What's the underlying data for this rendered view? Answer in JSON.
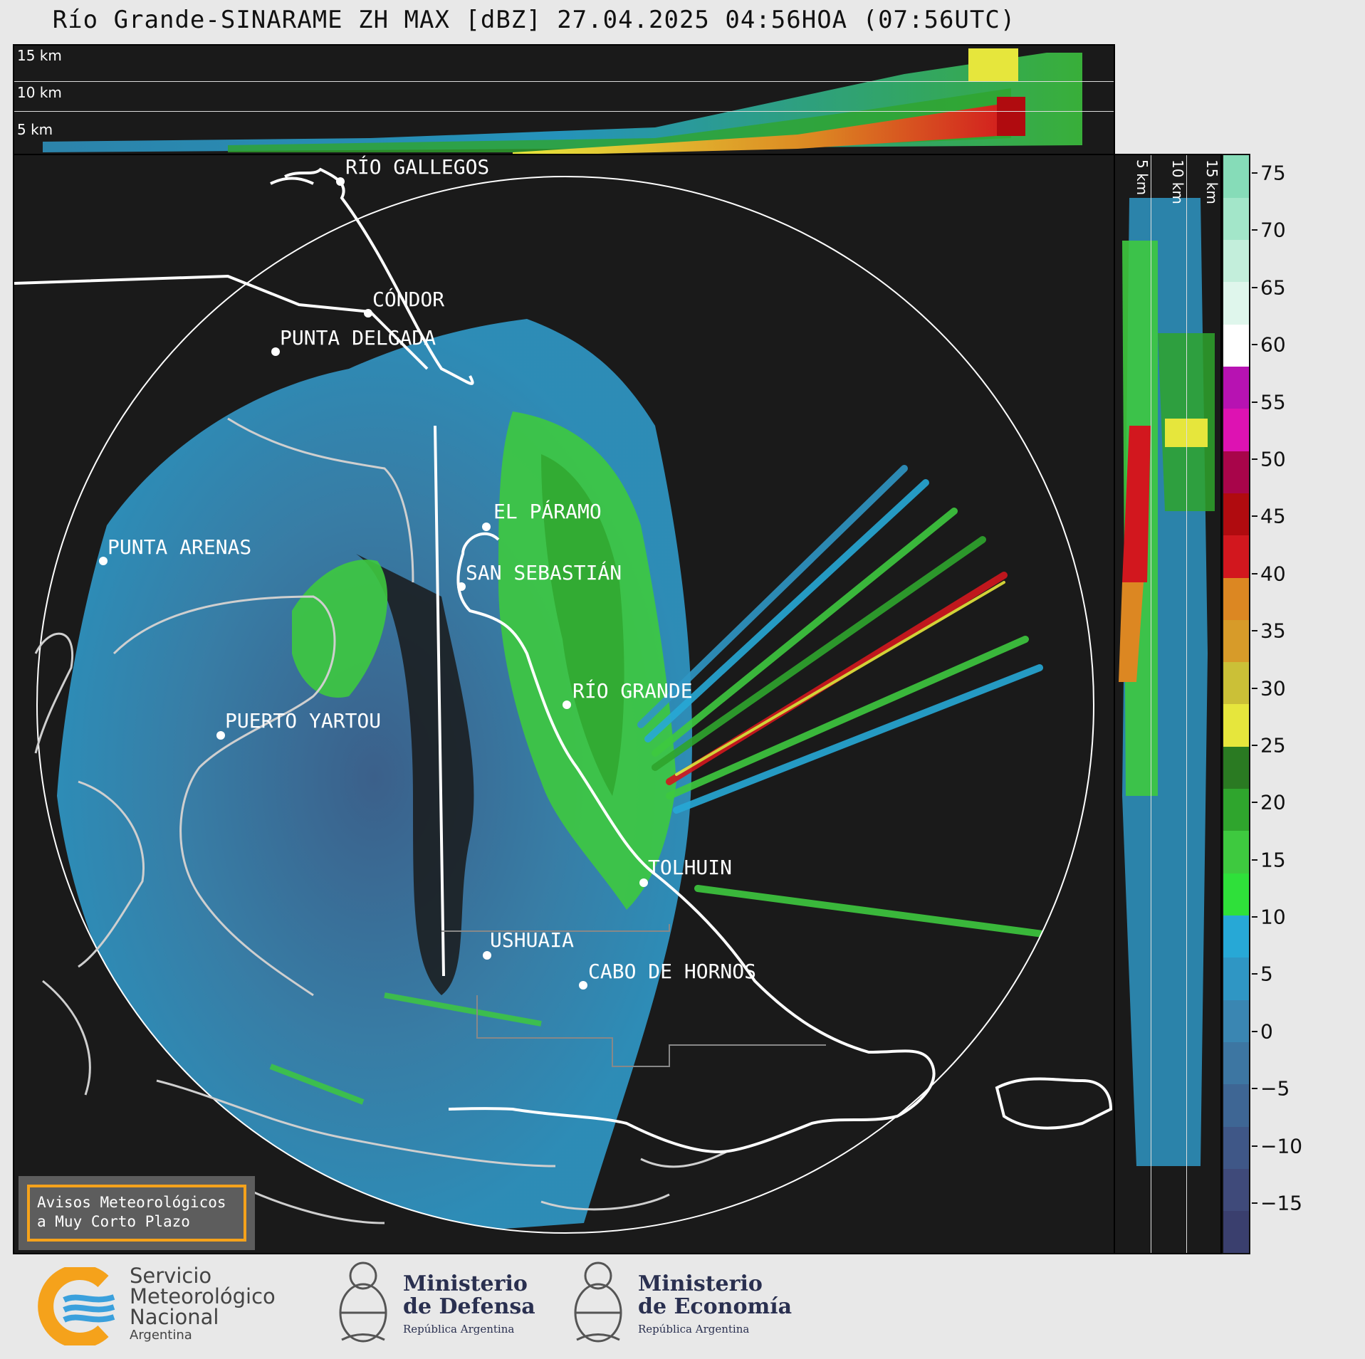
{
  "title": "Río Grande-SINARAME ZH MAX [dBZ] 27.04.2025 04:56HOA (07:56UTC)",
  "top_panel": {
    "height_labels": [
      "15 km",
      "10 km",
      "5 km"
    ]
  },
  "side_panel": {
    "height_labels": [
      "5 km",
      "10 km",
      "15 km"
    ]
  },
  "cities": [
    {
      "name": "RÍO GALLEGOS"
    },
    {
      "name": "CÓNDOR"
    },
    {
      "name": "PUNTA DELGADA"
    },
    {
      "name": "PUNTA ARENAS"
    },
    {
      "name": "EL PÁRAMO"
    },
    {
      "name": "SAN SEBASTIÁN"
    },
    {
      "name": "RÍO GRANDE"
    },
    {
      "name": "PUERTO YARTOU"
    },
    {
      "name": "TOLHUIN"
    },
    {
      "name": "USHUAIA"
    },
    {
      "name": "CABO DE HORNOS"
    }
  ],
  "colorbar": {
    "unit": "dBZ",
    "ticks": [
      "75",
      "70",
      "65",
      "60",
      "55",
      "50",
      "45",
      "40",
      "35",
      "30",
      "25",
      "20",
      "15",
      "10",
      "5",
      "0",
      "−5",
      "−10",
      "−15"
    ],
    "colors": [
      "#3a3f6e",
      "#3f4a7a",
      "#3f5787",
      "#3e6694",
      "#3d76a2",
      "#3a86b2",
      "#2f96c4",
      "#27a8d6",
      "#2fe03a",
      "#3ec93f",
      "#2fa52d",
      "#2a7a22",
      "#e6e63c",
      "#cbc037",
      "#d79b29",
      "#dc8722",
      "#d2171e",
      "#b00b0f",
      "#a8054a",
      "#dd12b2",
      "#b712b2",
      "#ffffff",
      "#dff6ec",
      "#c3eedb",
      "#a3e6c9",
      "#86dcb8"
    ]
  },
  "alert_box": {
    "line1": "Avisos Meteorológicos",
    "line2": "a Muy Corto Plazo"
  },
  "logos": {
    "smn": {
      "line1": "Servicio",
      "line2": "Meteorológico",
      "line3": "Nacional",
      "line4": "Argentina"
    },
    "defensa": {
      "line1": "Ministerio",
      "line2": "de Defensa",
      "sub": "República Argentina"
    },
    "economia": {
      "line1": "Ministerio",
      "line2": "de Economía",
      "sub": "República Argentina"
    }
  }
}
